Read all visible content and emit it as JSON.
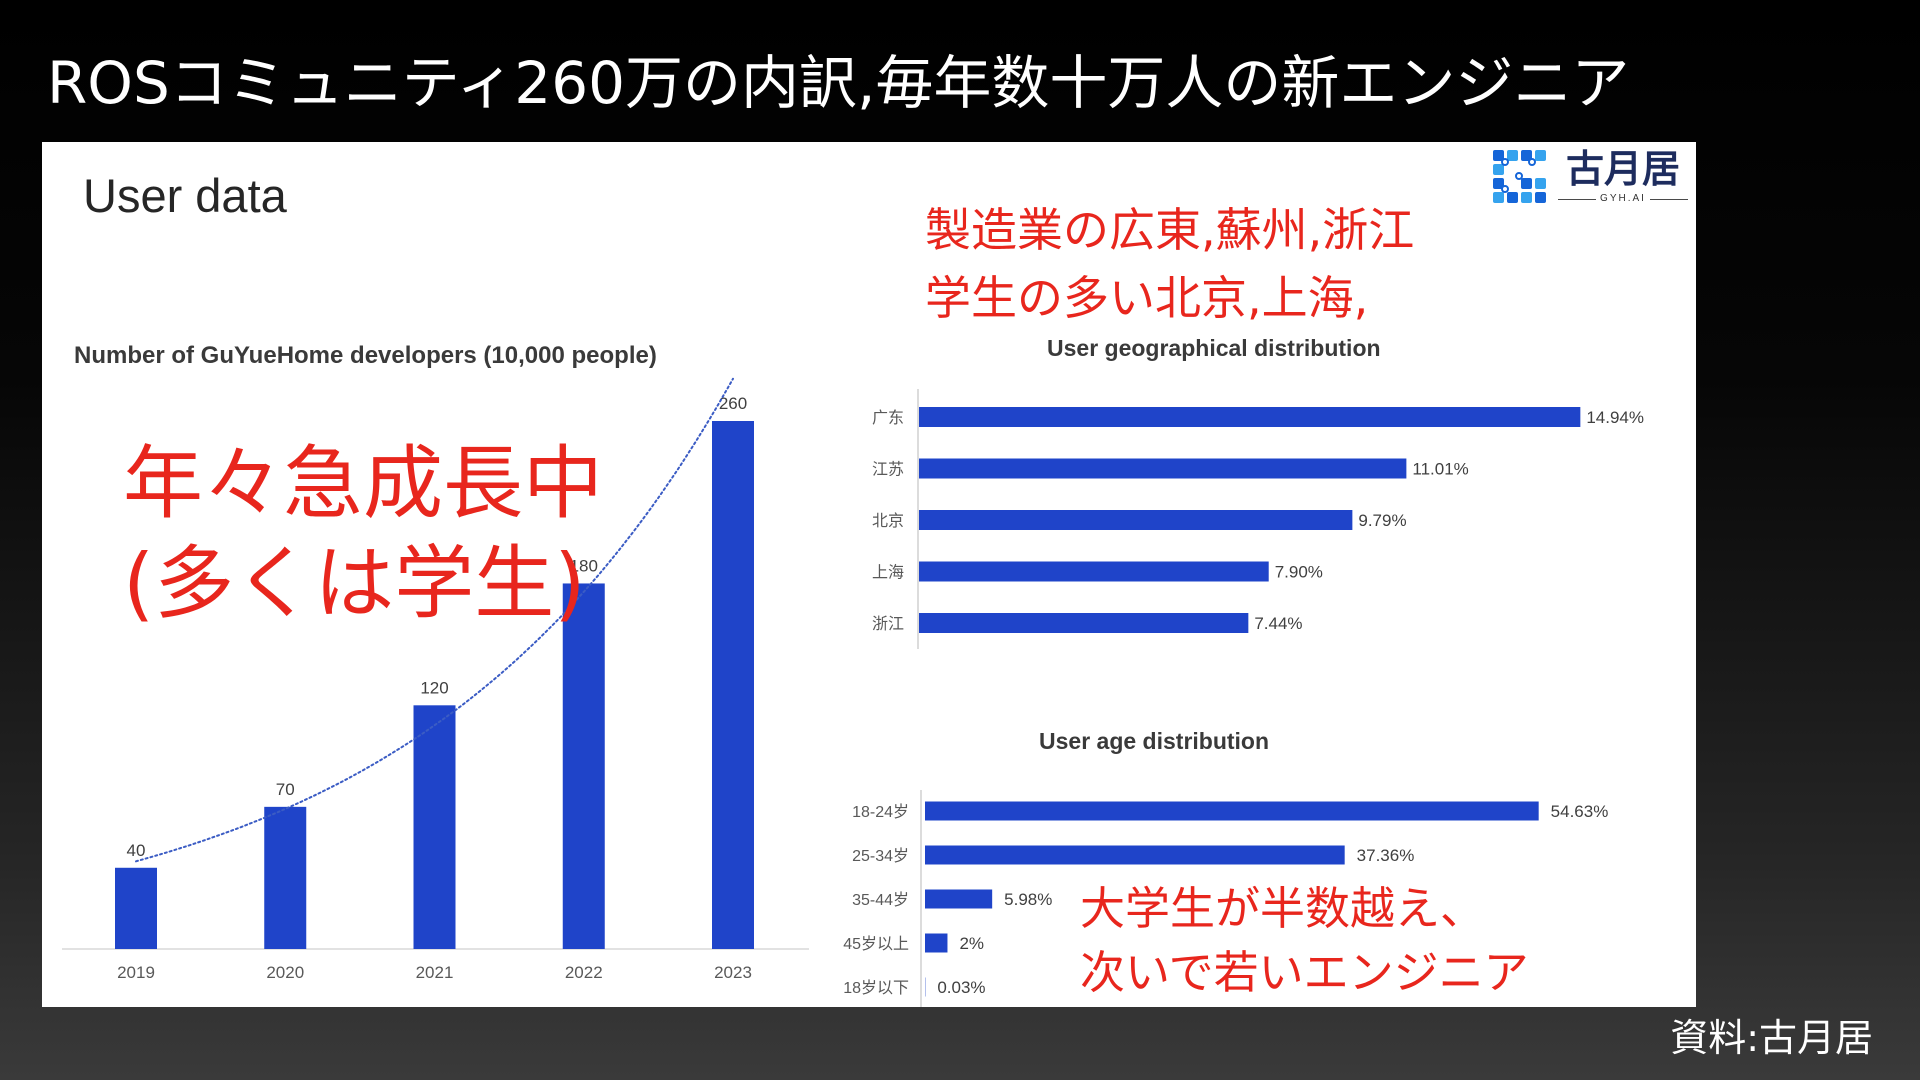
{
  "slide": {
    "title": "ROSコミュニティ260万の内訳,毎年数十万人の新エンジニア",
    "source": "資料:古月居",
    "panel_heading": "User data",
    "logo": {
      "name": "古月居",
      "tagline": "GYH.AI",
      "icon": "gyh-grid-logo-icon"
    },
    "annotations": {
      "growth": [
        "年々急成長中",
        "(多くは学生)"
      ],
      "region": [
        "製造業の広東,蘇州,浙江",
        "学生の多い北京,上海,"
      ],
      "age": [
        "大学生が半数越え、",
        "次いで若いエンジニア"
      ]
    },
    "colors": {
      "bar": "#1f44c9",
      "trendline": "#3b5cc4",
      "annotation": "#e8261d",
      "title": "#ffffff",
      "logo_primary": "#1565d8",
      "logo_secondary": "#35a3ee"
    }
  },
  "chart_data": [
    {
      "type": "bar",
      "title": "Number of GuYueHome developers (10,000 people)",
      "categories": [
        "2019",
        "2020",
        "2021",
        "2022",
        "2023"
      ],
      "values": [
        40,
        70,
        120,
        180,
        260
      ],
      "value_labels": [
        "40",
        "70",
        "120",
        "180",
        "260"
      ],
      "ylim": [
        0,
        260
      ],
      "grid": false,
      "trendline": true
    },
    {
      "type": "bar",
      "orientation": "horizontal",
      "title": "User geographical distribution",
      "categories": [
        "广东",
        "江苏",
        "北京",
        "上海",
        "浙江"
      ],
      "values": [
        14.94,
        11.01,
        9.79,
        7.9,
        7.44
      ],
      "value_labels": [
        "14.94%",
        "11.01%",
        "9.79%",
        "7.90%",
        "7.44%"
      ],
      "xlim": [
        0,
        15
      ],
      "grid": false
    },
    {
      "type": "bar",
      "orientation": "horizontal",
      "title": "User age distribution",
      "categories": [
        "18-24岁",
        "25-34岁",
        "35-44岁",
        "45岁以上",
        "18岁以下"
      ],
      "values": [
        54.63,
        37.36,
        5.98,
        2,
        0.03
      ],
      "value_labels": [
        "54.63%",
        "37.36%",
        "5.98%",
        "2%",
        "0.03%"
      ],
      "xlim": [
        0,
        60
      ],
      "grid": false
    }
  ]
}
